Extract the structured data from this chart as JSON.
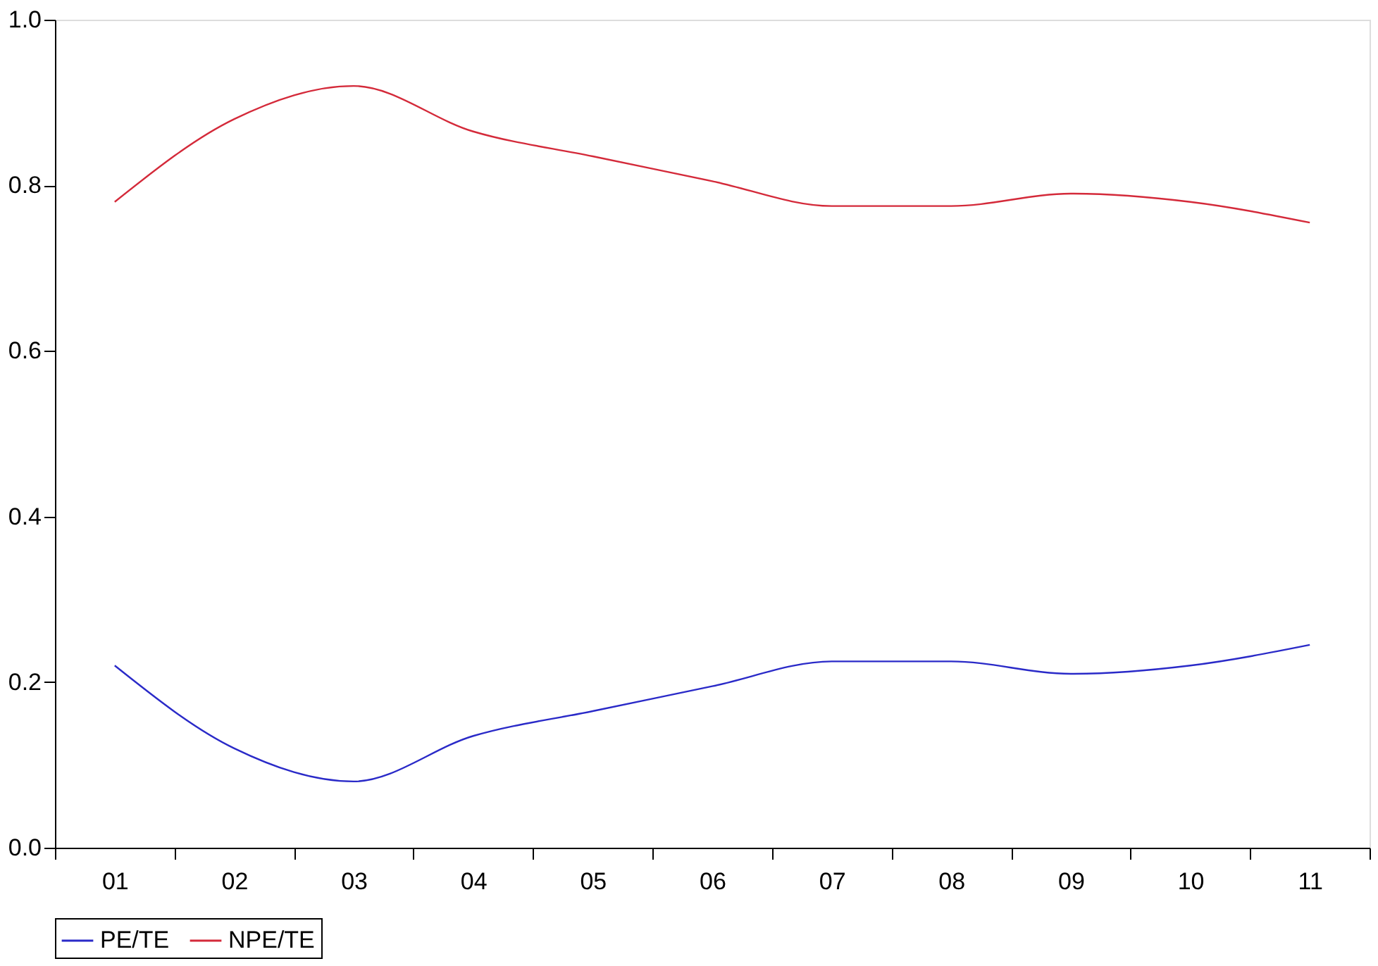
{
  "chart_data": {
    "type": "line",
    "categories": [
      "01",
      "02",
      "03",
      "04",
      "05",
      "06",
      "07",
      "08",
      "09",
      "10",
      "11"
    ],
    "series": [
      {
        "name": "PE/TE",
        "color": "#2a2ac8",
        "values": [
          0.22,
          0.12,
          0.08,
          0.135,
          0.165,
          0.195,
          0.225,
          0.225,
          0.21,
          0.22,
          0.245
        ]
      },
      {
        "name": "NPE/TE",
        "color": "#d42a3a",
        "values": [
          0.78,
          0.88,
          0.92,
          0.865,
          0.835,
          0.805,
          0.775,
          0.775,
          0.79,
          0.78,
          0.755
        ]
      }
    ],
    "ylim": [
      0,
      1
    ],
    "yticks": [
      {
        "value": 0,
        "label": "0.0"
      },
      0.2,
      0.4,
      0.6,
      0.8,
      {
        "value": 1,
        "label": "1.0"
      }
    ],
    "grid": false,
    "legend": "bottom",
    "marker": "none",
    "line_style": "solid"
  }
}
